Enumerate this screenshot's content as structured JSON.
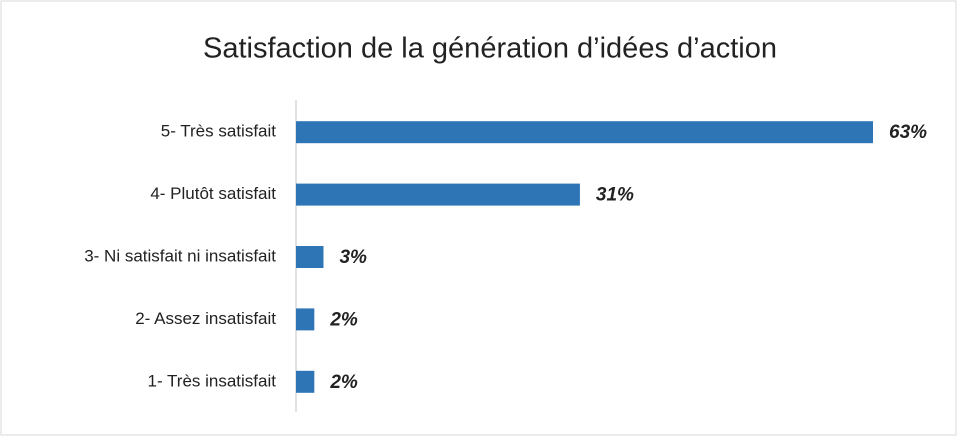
{
  "chart_data": {
    "type": "bar",
    "orientation": "horizontal",
    "title": "Satisfaction de la génération d’idées d’action",
    "categories": [
      "5- Très satisfait",
      "4- Plutôt satisfait",
      "3- Ni satisfait ni insatisfait",
      "2- Assez insatisfait",
      "1- Très insatisfait"
    ],
    "values": [
      63,
      31,
      3,
      2,
      2
    ],
    "value_labels": [
      "63%",
      "31%",
      "3%",
      "2%",
      "2%"
    ],
    "color": "#2e75b6"
  }
}
